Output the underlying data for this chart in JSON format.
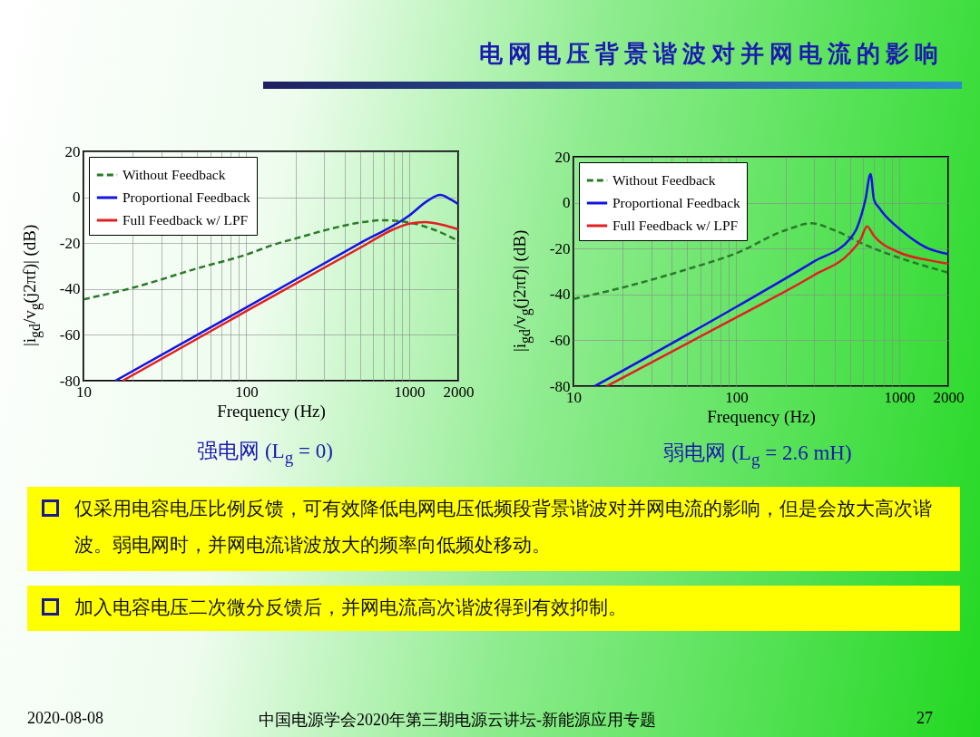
{
  "chart_data": [
    {
      "type": "line",
      "xlabel": "Frequency (Hz)",
      "ylabel": "|i$_{gd}$/v$_{g}$(j2πf)| (dB)",
      "xlim": [
        10,
        2000
      ],
      "ylim": [
        -80,
        20
      ],
      "xticks": [
        10,
        {
          "value": 20,
          "label": null
        },
        {
          "value": 30,
          "label": null
        },
        {
          "value": 40,
          "label": null
        },
        {
          "value": 50,
          "label": null
        },
        {
          "value": 60,
          "label": null
        },
        {
          "value": 70,
          "label": null
        },
        {
          "value": 80,
          "label": null
        },
        {
          "value": 90,
          "label": null
        },
        100,
        {
          "value": 200,
          "label": null
        },
        {
          "value": 300,
          "label": null
        },
        {
          "value": 400,
          "label": null
        },
        {
          "value": 500,
          "label": null
        },
        {
          "value": 600,
          "label": null
        },
        {
          "value": 700,
          "label": null
        },
        {
          "value": 800,
          "label": null
        },
        {
          "value": 900,
          "label": null
        },
        1000,
        2000
      ],
      "yticks": [
        -80,
        -60,
        -40,
        -20,
        0,
        20
      ],
      "log": "x",
      "grid": true,
      "legend": "top left",
      "marker": "none",
      "series": [
        {
          "name": "Without Feedback",
          "color": "#2a7a2a",
          "line_style": "dashed",
          "x": [
            10,
            20,
            50,
            100,
            150,
            200,
            300,
            500,
            700,
            1000,
            1400,
            2000
          ],
          "values": [
            -44.5,
            -39.5,
            -31,
            -25,
            -20.5,
            -18,
            -14.5,
            -11,
            -10,
            -11,
            -14,
            -19
          ]
        },
        {
          "name": "Proportional Feedback",
          "color": "#1414e0",
          "line_style": "solid",
          "x": [
            15.7,
            100,
            500,
            1000,
            1300,
            1550,
            1800,
            2000
          ],
          "values": [
            -80,
            -48,
            -20,
            -8,
            -1.5,
            1,
            -1,
            -3
          ]
        },
        {
          "name": "Full Feedback w/ LPF",
          "color": "#e02020",
          "line_style": "solid",
          "x": [
            17.4,
            100,
            500,
            800,
            1000,
            1250,
            1600,
            2000
          ],
          "values": [
            -80,
            -49.6,
            -22,
            -14,
            -11.5,
            -10.8,
            -12,
            -14
          ]
        }
      ],
      "annotations": [
        "强电网 (L$_{g}$ = 0)",
        "仅采用电容电压比例反馈，可有效降低电网电压低频段背景谐波对并网电流的影响，但是会放大高次谐波。弱电网时，并网电流谐波放大的频率向低频处移动。",
        "加入电容电压二次微分反馈后，并网电流高次谐波得到有效抑制。",
        "2020-08-08",
        "中国电源学会2020年第三期电源云讲坛-新能源应用专题",
        "27"
      ]
    },
    {
      "type": "line",
      "title": "电网电压背景谐波对并网电流的影响",
      "xlabel": "Frequency (Hz)",
      "ylabel": "|i$_{gd}$/v$_{g}$(j2πf)| (dB)",
      "xlim": [
        10,
        2000
      ],
      "ylim": [
        -80,
        20
      ],
      "xticks": [
        10,
        {
          "value": 20,
          "label": null
        },
        {
          "value": 30,
          "label": null
        },
        {
          "value": 40,
          "label": null
        },
        {
          "value": 50,
          "label": null
        },
        {
          "value": 60,
          "label": null
        },
        {
          "value": 70,
          "label": null
        },
        {
          "value": 80,
          "label": null
        },
        {
          "value": 90,
          "label": null
        },
        100,
        {
          "value": 200,
          "label": null
        },
        {
          "value": 300,
          "label": null
        },
        {
          "value": 400,
          "label": null
        },
        {
          "value": 500,
          "label": null
        },
        {
          "value": 600,
          "label": null
        },
        {
          "value": 700,
          "label": null
        },
        {
          "value": 800,
          "label": null
        },
        {
          "value": 900,
          "label": null
        },
        1000,
        2000
      ],
      "yticks": [
        -80,
        -60,
        -40,
        -20,
        0,
        20
      ],
      "log": "x",
      "grid": true,
      "legend": "top left",
      "marker": "none",
      "series": [
        {
          "name": "Without Feedback",
          "color": "#2a7a2a",
          "line_style": "dashed",
          "x": [
            10,
            20,
            50,
            100,
            200,
            290,
            400,
            600,
            1000,
            2000
          ],
          "values": [
            -42,
            -37,
            -29,
            -22,
            -12,
            -9,
            -12,
            -18,
            -24,
            -30.5
          ]
        },
        {
          "name": "Proportional Feedback",
          "color": "#1414e0",
          "line_style": "solid",
          "x": [
            13.5,
            100,
            300,
            500,
            550,
            620,
            667,
            700,
            760,
            800,
            1000,
            1500,
            2000
          ],
          "values": [
            -80,
            -45.4,
            -25.6,
            -15.7,
            -11,
            1.3,
            12.5,
            1.3,
            -2.6,
            -4.7,
            -11.3,
            -19.9,
            -22.4
          ]
        },
        {
          "name": "Full Feedback w/ LPF",
          "color": "#e02020",
          "line_style": "solid",
          "x": [
            16,
            100,
            300,
            500,
            580,
            634,
            700,
            1000,
            1500,
            2000
          ],
          "values": [
            -80,
            -50,
            -31.6,
            -21.7,
            -16,
            -10.3,
            -14.5,
            -21.7,
            -25,
            -26.6
          ]
        }
      ],
      "annotations": [
        "弱电网 (L$_{g}$ = 2.6 mH)"
      ]
    }
  ]
}
